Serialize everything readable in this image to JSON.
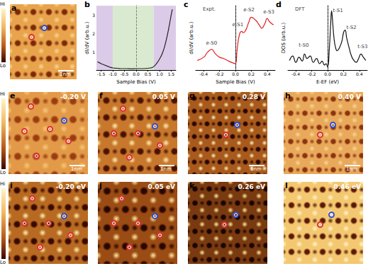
{
  "colorbar": {
    "high": "Hi",
    "low": "Lo"
  },
  "images": [
    {
      "label": "a",
      "scale_bar": "1nm"
    },
    {
      "label": "e",
      "bias": "-0.20 V",
      "scale_bar": "1nm"
    },
    {
      "label": "f",
      "bias": "0.05 V",
      "scale_bar": "1nm"
    },
    {
      "label": "g",
      "bias": "0.28 V",
      "scale_bar": "1nm"
    },
    {
      "label": "h",
      "bias": "0.40 V",
      "scale_bar": "1nm"
    },
    {
      "label": "i",
      "bias": "-0.20 eV"
    },
    {
      "label": "j",
      "bias": "0.05 eV"
    },
    {
      "label": "k",
      "bias": "0.26 eV"
    },
    {
      "label": "l",
      "bias": "0.46 eV"
    }
  ],
  "chart_data": [
    {
      "type": "line",
      "title": "b",
      "x_label": "Sample Bias (V)",
      "y_label": "dI/dV (arb.u.)",
      "x": [
        -1.65,
        -1.5,
        -1.4,
        -1.3,
        -1.2,
        -1.1,
        -1.0,
        -0.8,
        -0.6,
        -0.4,
        -0.2,
        0,
        0.2,
        0.4,
        0.6,
        0.7,
        0.8,
        0.9,
        1.0,
        1.1,
        1.2,
        1.3,
        1.4,
        1.5,
        1.55
      ],
      "values": [
        0.45,
        0.35,
        0.3,
        0.25,
        0.2,
        0.15,
        0.12,
        0.1,
        0.08,
        0.08,
        0.07,
        0.08,
        0.08,
        0.09,
        0.12,
        0.15,
        0.25,
        0.4,
        0.6,
        0.85,
        1.2,
        1.7,
        2.3,
        3.0,
        3.3
      ],
      "color": "#222222",
      "xlim": [
        -1.7,
        1.7
      ],
      "xticks": [
        {
          "value": -1.5,
          "label": "-1.5"
        },
        {
          "value": -1.0,
          "label": "-1.0"
        },
        {
          "value": -0.5,
          "label": "-0.5"
        },
        {
          "value": 0,
          "label": "0.0"
        },
        {
          "value": 0.5,
          "label": "0.5"
        },
        {
          "value": 1.0,
          "label": "1.0"
        },
        {
          "value": 1.5,
          "label": "1.5"
        }
      ],
      "ylim": [
        0,
        3.5
      ],
      "yticks": [
        0,
        1,
        2,
        3
      ],
      "vlines": [
        0
      ],
      "regions": [
        {
          "from": -1.7,
          "to": -1.0,
          "color": "#dccbe8"
        },
        {
          "from": -1.0,
          "to": 0.75,
          "color": "#d9ead0"
        },
        {
          "from": 0.75,
          "to": 1.7,
          "color": "#dccbe8"
        }
      ],
      "grid": false
    },
    {
      "type": "line",
      "title": "c",
      "x_label": "Sample Bias (V)",
      "y_label": "dI/dV (arb.u.)",
      "x": [
        -0.48,
        -0.4,
        -0.35,
        -0.3,
        -0.25,
        -0.2,
        -0.15,
        -0.1,
        -0.05,
        0,
        0.02,
        0.05,
        0.08,
        0.1,
        0.13,
        0.17,
        0.2,
        0.25,
        0.3,
        0.33,
        0.37,
        0.4,
        0.43,
        0.48
      ],
      "values": [
        0.15,
        0.2,
        0.28,
        0.32,
        0.25,
        0.2,
        0.18,
        0.15,
        0.12,
        0.1,
        0.3,
        0.55,
        0.6,
        0.58,
        0.62,
        0.75,
        0.82,
        0.78,
        0.7,
        0.65,
        0.72,
        0.8,
        0.75,
        0.7
      ],
      "color": "#e02020",
      "xlim": [
        -0.5,
        0.5
      ],
      "xticks": [
        {
          "value": -0.4,
          "label": "-0.4"
        },
        {
          "value": -0.2,
          "label": "-0.2"
        },
        {
          "value": 0,
          "label": "0.0"
        },
        {
          "value": 0.2,
          "label": "0.2"
        },
        {
          "value": 0.4,
          "label": "0.4"
        }
      ],
      "ylim": [
        0,
        1
      ],
      "yticks": [],
      "tick_labels": "x",
      "vlines": [
        0
      ],
      "annotations": [
        {
          "text": "Expt.",
          "x": -0.33,
          "y": 0.95
        },
        {
          "text": "e-S0",
          "x": -0.3,
          "y": 0.42
        },
        {
          "text": "e-S1",
          "x": 0.03,
          "y": 0.7
        },
        {
          "text": "e-S2",
          "x": 0.17,
          "y": 0.93
        },
        {
          "text": "e-S3",
          "x": 0.42,
          "y": 0.9
        }
      ],
      "grid": false
    },
    {
      "type": "line",
      "title": "d",
      "x_label": "E-EF (eV)",
      "y_label": "DOS (arb.u.)",
      "x": [
        -0.48,
        -0.44,
        -0.4,
        -0.36,
        -0.32,
        -0.29,
        -0.26,
        -0.22,
        -0.18,
        -0.14,
        -0.1,
        -0.07,
        -0.04,
        -0.02,
        0,
        0.02,
        0.04,
        0.05,
        0.06,
        0.08,
        0.1,
        0.12,
        0.15,
        0.18,
        0.2,
        0.22,
        0.24,
        0.27,
        0.3,
        0.33,
        0.36,
        0.39,
        0.42,
        0.45,
        0.48
      ],
      "values": [
        0.15,
        0.22,
        0.12,
        0.2,
        0.14,
        0.25,
        0.18,
        0.22,
        0.12,
        0.18,
        0.1,
        0.14,
        0.08,
        0.1,
        0.05,
        0.3,
        0.75,
        0.92,
        0.8,
        0.5,
        0.35,
        0.3,
        0.35,
        0.45,
        0.58,
        0.62,
        0.5,
        0.35,
        0.22,
        0.15,
        0.12,
        0.18,
        0.25,
        0.2,
        0.15
      ],
      "color": "#111111",
      "xlim": [
        -0.5,
        0.5
      ],
      "xticks": [
        {
          "value": -0.4,
          "label": "-0.4"
        },
        {
          "value": -0.2,
          "label": "-0.2"
        },
        {
          "value": 0,
          "label": "0.0"
        },
        {
          "value": 0.2,
          "label": "0.2"
        },
        {
          "value": 0.4,
          "label": "0.4"
        }
      ],
      "ylim": [
        0,
        1
      ],
      "yticks": [],
      "tick_labels": "x",
      "vlines": [
        0
      ],
      "annotations": [
        {
          "text": "DFT",
          "x": -0.35,
          "y": 0.95
        },
        {
          "text": "t-S0",
          "x": -0.3,
          "y": 0.38
        },
        {
          "text": "t-S1",
          "x": 0.13,
          "y": 0.92
        },
        {
          "text": "t-S2",
          "x": 0.3,
          "y": 0.66
        },
        {
          "text": "t-S3",
          "x": 0.44,
          "y": 0.36
        }
      ],
      "grid": false
    }
  ]
}
